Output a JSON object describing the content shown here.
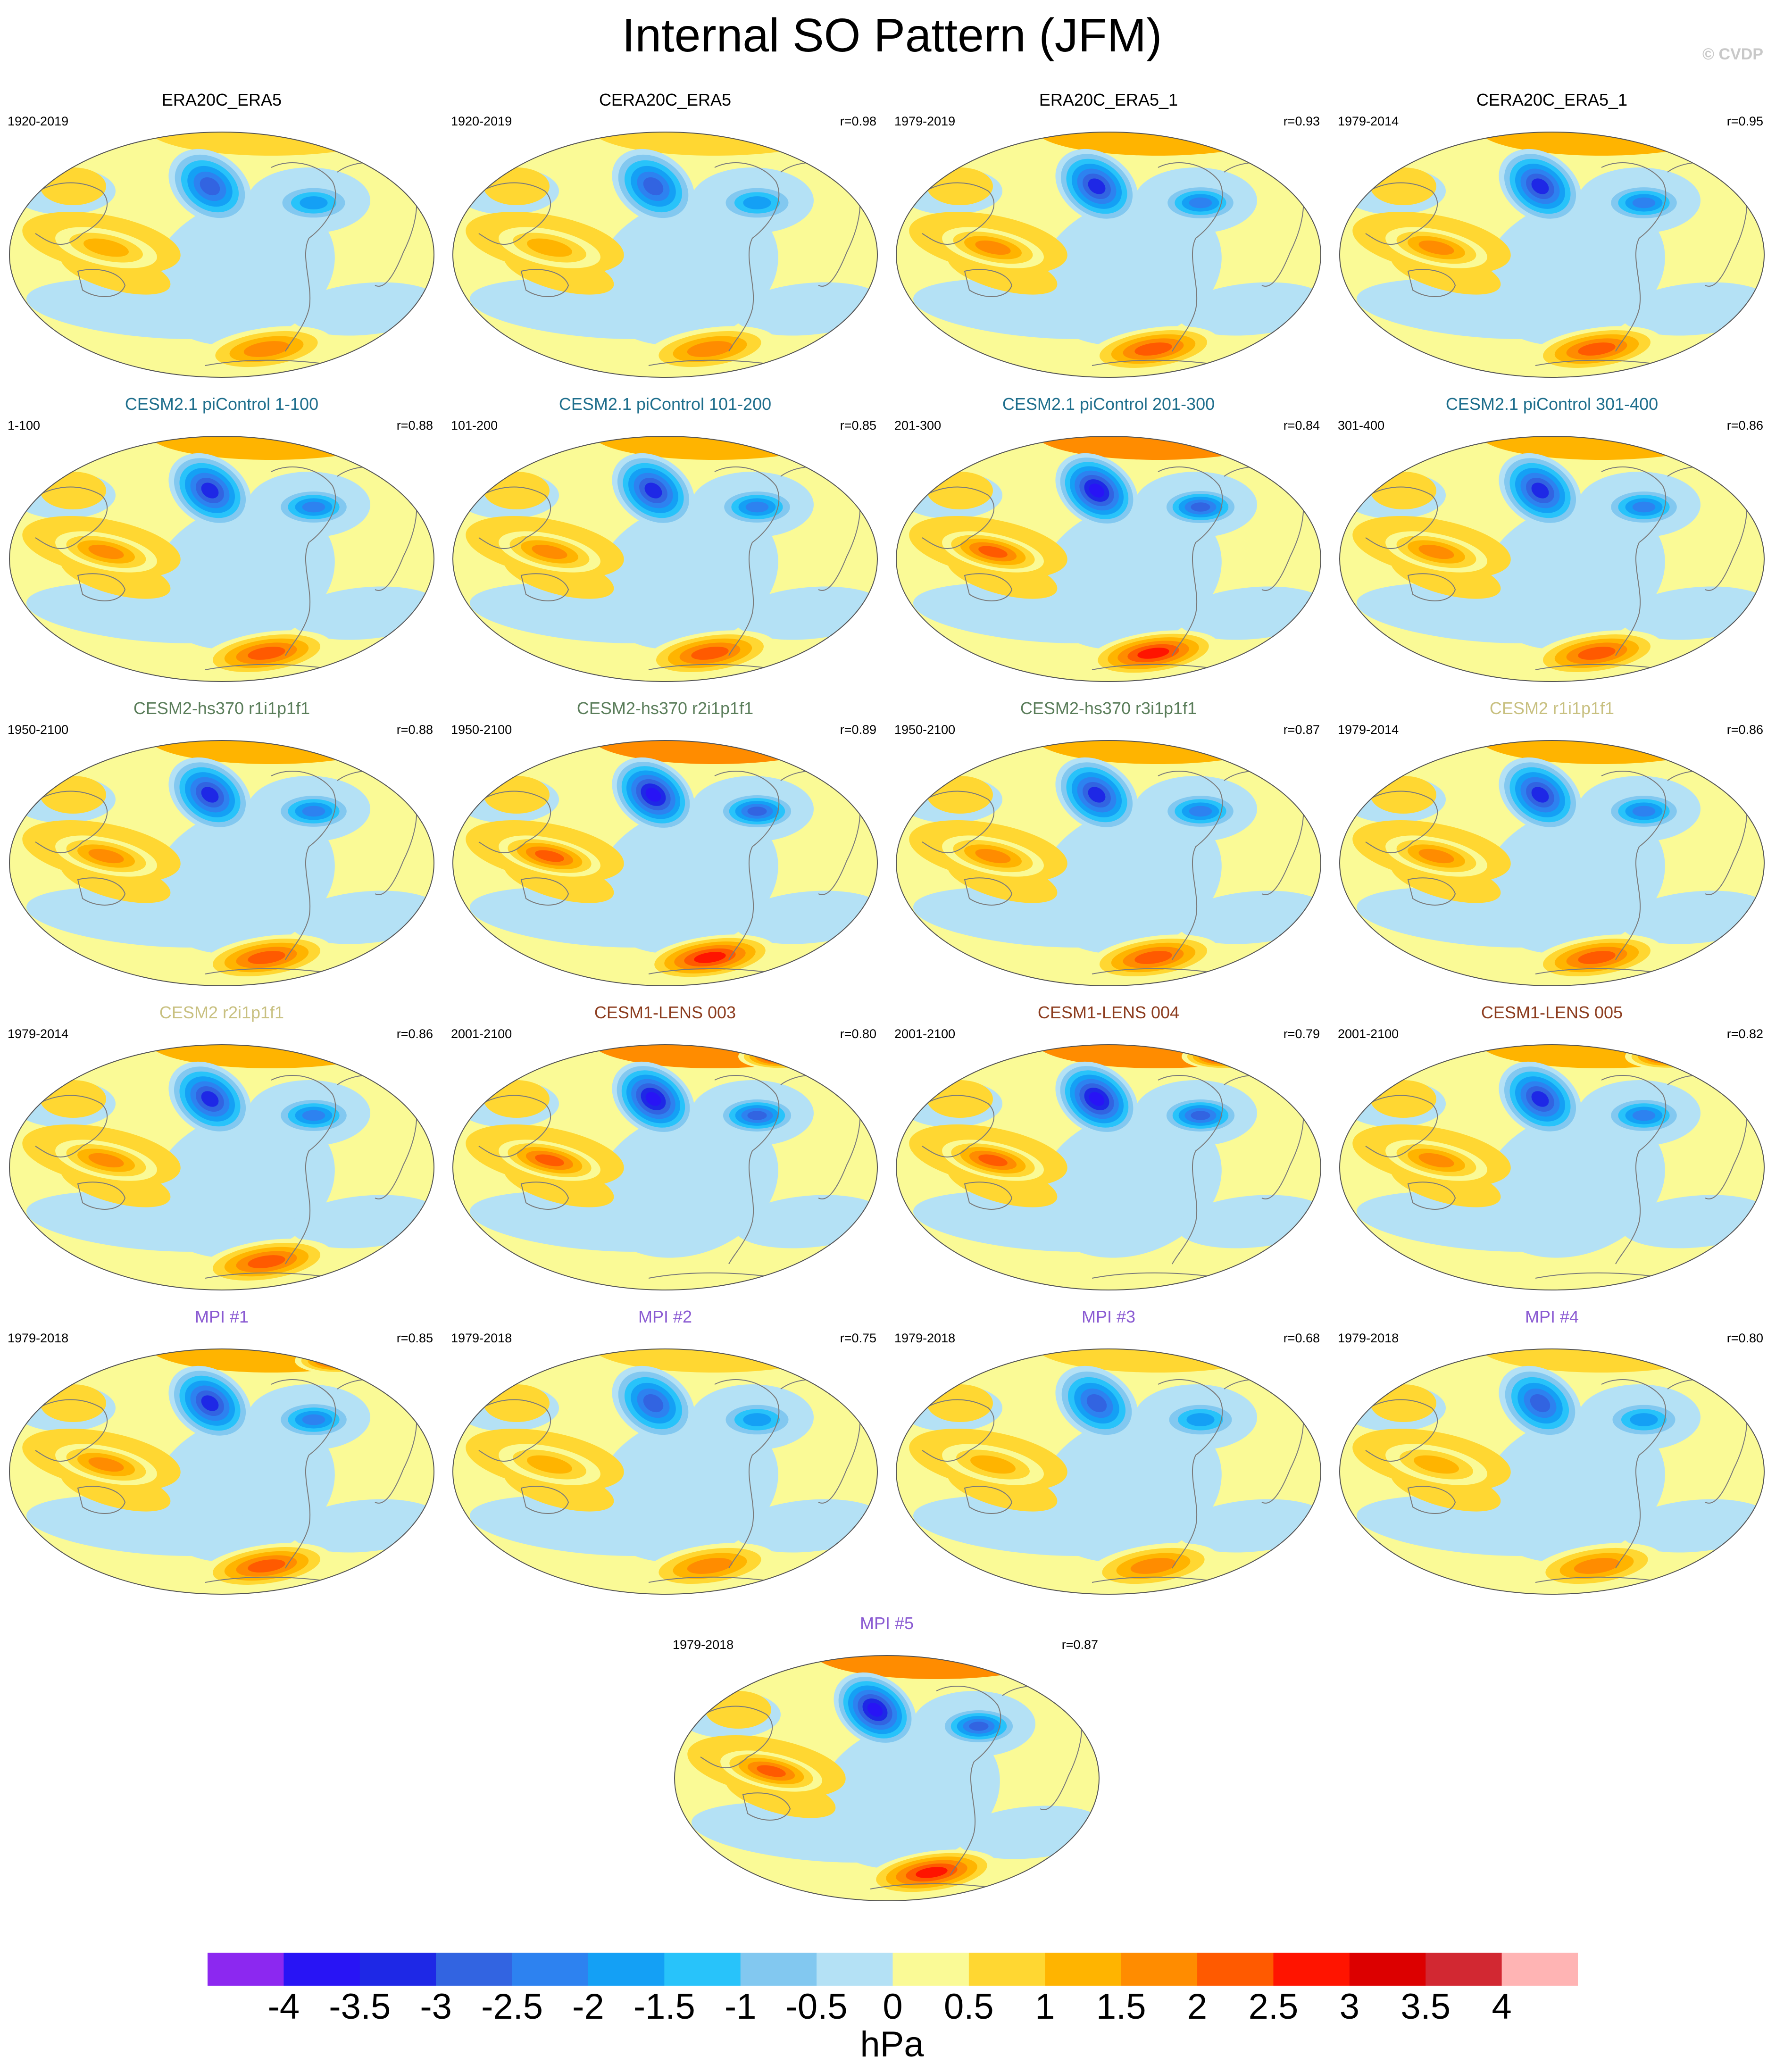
{
  "title": "Internal SO Pattern (JFM)",
  "credit": "© CVDP",
  "panels": [
    {
      "title": "ERA20C_ERA5",
      "title_color": "#000000",
      "period": "1920-2019",
      "corr": ""
    },
    {
      "title": "CERA20C_ERA5",
      "title_color": "#000000",
      "period": "1920-2019",
      "corr": "r=0.98"
    },
    {
      "title": "ERA20C_ERA5_1",
      "title_color": "#000000",
      "period": "1979-2019",
      "corr": "r=0.93"
    },
    {
      "title": "CERA20C_ERA5_1",
      "title_color": "#000000",
      "period": "1979-2014",
      "corr": "r=0.95"
    },
    {
      "title": "CESM2.1 piControl 1-100",
      "title_color": "#1e6e8c",
      "period": "1-100",
      "corr": "r=0.88"
    },
    {
      "title": "CESM2.1 piControl 101-200",
      "title_color": "#1e6e8c",
      "period": "101-200",
      "corr": "r=0.85"
    },
    {
      "title": "CESM2.1 piControl 201-300",
      "title_color": "#1e6e8c",
      "period": "201-300",
      "corr": "r=0.84"
    },
    {
      "title": "CESM2.1 piControl 301-400",
      "title_color": "#1e6e8c",
      "period": "301-400",
      "corr": "r=0.86"
    },
    {
      "title": "CESM2-hs370 r1i1p1f1",
      "title_color": "#5a7d5a",
      "period": "1950-2100",
      "corr": "r=0.88"
    },
    {
      "title": "CESM2-hs370 r2i1p1f1",
      "title_color": "#5a7d5a",
      "period": "1950-2100",
      "corr": "r=0.89"
    },
    {
      "title": "CESM2-hs370 r3i1p1f1",
      "title_color": "#5a7d5a",
      "period": "1950-2100",
      "corr": "r=0.87"
    },
    {
      "title": "CESM2 r1i1p1f1",
      "title_color": "#c8c080",
      "period": "1979-2014",
      "corr": "r=0.86"
    },
    {
      "title": "CESM2 r2i1p1f1",
      "title_color": "#c8c080",
      "period": "1979-2014",
      "corr": "r=0.86"
    },
    {
      "title": "CESM1-LENS 003",
      "title_color": "#8c3c1e",
      "period": "2001-2100",
      "corr": "r=0.80"
    },
    {
      "title": "CESM1-LENS 004",
      "title_color": "#8c3c1e",
      "period": "2001-2100",
      "corr": "r=0.79"
    },
    {
      "title": "CESM1-LENS 005",
      "title_color": "#8c3c1e",
      "period": "2001-2100",
      "corr": "r=0.82"
    },
    {
      "title": "MPI #1",
      "title_color": "#8a5ad2",
      "period": "1979-2018",
      "corr": "r=0.85"
    },
    {
      "title": "MPI #2",
      "title_color": "#8a5ad2",
      "period": "1979-2018",
      "corr": "r=0.75"
    },
    {
      "title": "MPI #3",
      "title_color": "#8a5ad2",
      "period": "1979-2018",
      "corr": "r=0.68"
    },
    {
      "title": "MPI #4",
      "title_color": "#8a5ad2",
      "period": "1979-2018",
      "corr": "r=0.80"
    },
    {
      "title": "MPI #5",
      "title_color": "#8a5ad2",
      "period": "1979-2018",
      "corr": "r=0.87"
    }
  ],
  "colorbar": {
    "units": "hPa",
    "ticks": [
      "-4",
      "-3.5",
      "-3",
      "-2.5",
      "-2",
      "-1.5",
      "-1",
      "-0.5",
      "0",
      "0.5",
      "1",
      "1.5",
      "2",
      "2.5",
      "3",
      "3.5",
      "4"
    ],
    "colors": [
      "#8c28f0",
      "#2814f5",
      "#1e28e6",
      "#3264e1",
      "#2d82f0",
      "#14a0f5",
      "#28c3fa",
      "#82c8f0",
      "#b4e1f5",
      "#fafa96",
      "#ffd732",
      "#ffb400",
      "#ff8c00",
      "#ff5a00",
      "#ff1400",
      "#dc0000",
      "#d22832",
      "#ffb4b4"
    ]
  }
}
